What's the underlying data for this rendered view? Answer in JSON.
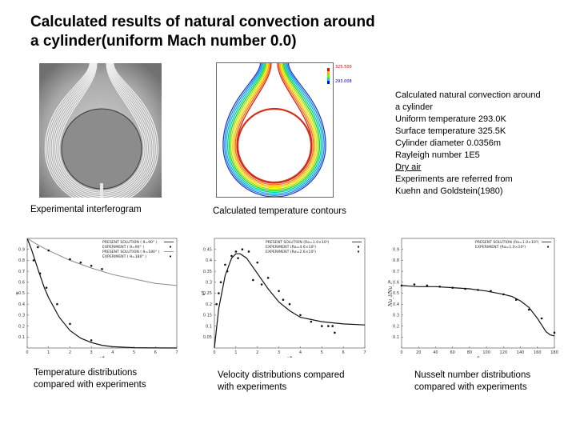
{
  "title": {
    "line1": "Calculated results of natural convection around",
    "line2": "a cylinder(uniform Mach number 0.0)"
  },
  "figures": {
    "interferogram": {
      "caption": "Experimental interferogram"
    },
    "contours": {
      "caption": "Calculated temperature contours",
      "legend_max": "325.500",
      "legend_min": "293.008"
    }
  },
  "info": {
    "lines": [
      "Calculated natural convection around",
      "a cylinder",
      "Uniform temperature 293.0K",
      "Surface temperature 325.5K",
      "Cylinder diameter 0.0356m",
      "Rayleigh number 1E5",
      "Dry air",
      "Experiments are referred from",
      "Kuehn and  Goldstein(1980)"
    ]
  },
  "captions": {
    "temperature": [
      "Temperature distributions",
      "compared with experiments"
    ],
    "velocity": [
      "Velocity distributions compared",
      "with experiments"
    ],
    "nusselt": [
      "Nusselt number distributions",
      "compared with experiments"
    ]
  },
  "chart_data": [
    {
      "type": "line",
      "id": "temperature",
      "xlabel": "γ*",
      "ylabel": "φ",
      "xlim": [
        0,
        7
      ],
      "ylim": [
        0,
        1.0
      ],
      "xticks": [
        "0",
        "1",
        "2",
        "3",
        "4",
        "5",
        "6",
        "7"
      ],
      "yticks": [
        "0.1",
        "0.2",
        "0.3",
        "0.4",
        "0.5",
        "0.6",
        "0.7",
        "0.8",
        "0.9"
      ],
      "legend": [
        "PRESENT SOLUTION  ( θ=90° )",
        "EXPERIMENT  ( θ=90° )",
        "PRESENT SOLUTION  ( θ=180° )",
        "EXPERIMENT  ( θ=180° )"
      ],
      "series": [
        {
          "x": [
            0,
            0.2,
            0.5,
            0.8,
            1.0,
            1.5,
            2.0,
            2.5,
            3.0,
            3.5,
            4.0,
            5.0,
            6.0,
            7.0
          ],
          "values": [
            1.0,
            0.9,
            0.72,
            0.55,
            0.46,
            0.28,
            0.16,
            0.09,
            0.05,
            0.025,
            0.012,
            0.003,
            0.001,
            0.0
          ]
        },
        {
          "x": [
            0.3,
            0.6,
            0.9,
            1.4,
            2.0,
            3.0
          ],
          "values": [
            0.8,
            0.68,
            0.55,
            0.4,
            0.22,
            0.07
          ]
        },
        {
          "x": [
            0,
            0.5,
            1.0,
            2.0,
            3.0,
            4.0,
            5.0,
            6.0,
            7.0
          ],
          "values": [
            1.0,
            0.94,
            0.89,
            0.8,
            0.73,
            0.67,
            0.63,
            0.59,
            0.57
          ]
        },
        {
          "x": [
            0.5,
            1.0,
            2.0,
            2.5,
            3.0,
            3.5
          ],
          "values": [
            0.92,
            0.89,
            0.81,
            0.78,
            0.75,
            0.72
          ]
        }
      ]
    },
    {
      "type": "line",
      "id": "velocity",
      "xlabel": "γ*",
      "ylabel": "v*",
      "xlim": [
        0,
        7
      ],
      "ylim": [
        0,
        0.5
      ],
      "xticks": [
        "0",
        "1",
        "2",
        "3",
        "4",
        "5",
        "6",
        "7"
      ],
      "yticks": [
        "0.05",
        "0.1",
        "0.15",
        "0.2",
        "0.25",
        "0.3",
        "0.35",
        "0.4",
        "0.45"
      ],
      "legend": [
        "PRESENT SOLUTION (Ra=1.0×10⁵)",
        "EXPERIMENT  (Ra=4.6×10⁵)",
        "EXPERIMENT  (Ra=2.6×10⁵)"
      ],
      "series": [
        {
          "x": [
            0,
            0.2,
            0.5,
            0.8,
            1.0,
            1.2,
            1.5,
            2.0,
            2.5,
            3.0,
            3.5,
            4.0,
            5.0,
            6.0,
            7.0
          ],
          "values": [
            0.0,
            0.18,
            0.33,
            0.41,
            0.43,
            0.43,
            0.41,
            0.34,
            0.27,
            0.21,
            0.17,
            0.14,
            0.12,
            0.11,
            0.105
          ]
        },
        {
          "x": [
            0.2,
            0.5,
            0.8,
            1.0,
            1.3,
            1.6,
            2.0,
            2.5,
            3.0,
            3.5,
            4.0,
            4.5,
            5.5
          ],
          "values": [
            0.25,
            0.38,
            0.42,
            0.44,
            0.45,
            0.44,
            0.39,
            0.32,
            0.26,
            0.2,
            0.15,
            0.12,
            0.1
          ]
        },
        {
          "x": [
            0.1,
            0.3,
            0.6,
            1.1,
            1.8,
            2.2,
            3.2,
            5.0,
            5.3,
            5.6
          ],
          "values": [
            0.2,
            0.3,
            0.35,
            0.41,
            0.31,
            0.29,
            0.22,
            0.1,
            0.1,
            0.07
          ]
        }
      ]
    },
    {
      "type": "line",
      "id": "nusselt",
      "xlabel": "θ",
      "ylabel": "Nu_l/Nu_l*",
      "xlim": [
        0,
        180
      ],
      "ylim": [
        0,
        1.0
      ],
      "xticks": [
        "0",
        "20",
        "40",
        "60",
        "80",
        "100",
        "120",
        "140",
        "160",
        "180"
      ],
      "yticks": [
        "0.1",
        "0.2",
        "0.3",
        "0.4",
        "0.5",
        "0.6",
        "0.7",
        "0.8",
        "0.9"
      ],
      "legend": [
        "PRESENT SOLUTION (Ra=1.0×10⁵)",
        "EXPERIMENT  (Ra=1.0×10⁵)"
      ],
      "series": [
        {
          "x": [
            0,
            20,
            40,
            60,
            80,
            100,
            120,
            130,
            140,
            150,
            160,
            165,
            170,
            175,
            180
          ],
          "values": [
            0.57,
            0.56,
            0.56,
            0.55,
            0.54,
            0.52,
            0.49,
            0.47,
            0.43,
            0.37,
            0.27,
            0.21,
            0.15,
            0.12,
            0.11
          ]
        },
        {
          "x": [
            0,
            15,
            30,
            45,
            60,
            75,
            90,
            105,
            120,
            135,
            150,
            165,
            180
          ],
          "values": [
            0.57,
            0.58,
            0.57,
            0.56,
            0.55,
            0.54,
            0.53,
            0.52,
            0.49,
            0.44,
            0.35,
            0.27,
            0.14
          ]
        }
      ]
    }
  ]
}
